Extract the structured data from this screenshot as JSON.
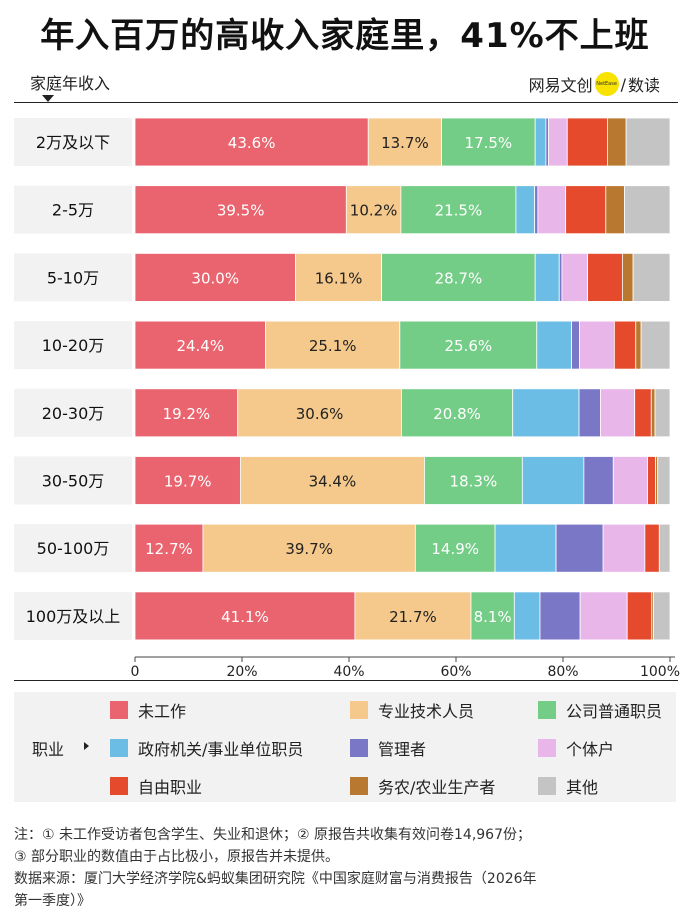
{
  "title": "年入百万的高收入家庭里，41%不上班",
  "axis_caption": "家庭年收入",
  "brand": {
    "name": "网易文创",
    "badge": "NetEase",
    "separator": "/",
    "suffix": "数读"
  },
  "legend_title": "职业",
  "chart_data": {
    "type": "bar",
    "orientation": "horizontal",
    "stacked": true,
    "categories": [
      "2万及以下",
      "2-5万",
      "5-10万",
      "10-20万",
      "20-30万",
      "30-50万",
      "50-100万",
      "100万及以上"
    ],
    "series": [
      {
        "name": "未工作",
        "color": "#e9646e",
        "values": [
          43.6,
          39.5,
          30.0,
          24.4,
          19.2,
          19.7,
          12.7,
          41.1
        ],
        "labels": [
          "43.6%",
          "39.5%",
          "30.0%",
          "24.4%",
          "19.2%",
          "19.7%",
          "12.7%",
          "41.1%"
        ]
      },
      {
        "name": "专业技术人员",
        "color": "#f5c98b",
        "values": [
          13.7,
          10.2,
          16.1,
          25.1,
          30.6,
          34.4,
          39.7,
          21.7
        ],
        "labels": [
          "13.7%",
          "10.2%",
          "16.1%",
          "25.1%",
          "30.6%",
          "34.4%",
          "39.7%",
          "21.7%"
        ]
      },
      {
        "name": "公司普通职员",
        "color": "#74cd87",
        "values": [
          17.5,
          21.5,
          28.7,
          25.6,
          20.8,
          18.3,
          14.9,
          8.1
        ],
        "labels": [
          "17.5%",
          "21.5%",
          "28.7%",
          "25.6%",
          "20.8%",
          "18.3%",
          "14.9%",
          "8.1%"
        ]
      },
      {
        "name": "政府机关/事业单位职员",
        "color": "#6bbde6",
        "values": [
          2.0,
          3.5,
          4.5,
          6.5,
          12.4,
          11.5,
          11.4,
          4.8
        ]
      },
      {
        "name": "管理者",
        "color": "#7b77c7",
        "values": [
          0.5,
          0.6,
          0.5,
          1.5,
          4.0,
          5.5,
          8.8,
          7.5
        ]
      },
      {
        "name": "个体户",
        "color": "#e9b6e9",
        "values": [
          3.5,
          5.2,
          4.8,
          6.5,
          6.4,
          6.4,
          7.8,
          8.8
        ]
      },
      {
        "name": "自由职业",
        "color": "#e44a2b",
        "values": [
          7.5,
          7.5,
          6.5,
          4.0,
          3.1,
          1.5,
          2.7,
          4.6
        ]
      },
      {
        "name": "务农/农业生产者",
        "color": "#b8782f",
        "values": [
          3.5,
          3.5,
          2.0,
          1.0,
          0.7,
          0.4,
          0.0,
          0.3
        ]
      },
      {
        "name": "其他",
        "color": "#c4c4c4",
        "values": [
          8.2,
          8.5,
          6.9,
          5.4,
          2.8,
          2.3,
          2.0,
          3.1
        ]
      }
    ],
    "xlim": [
      0,
      100
    ],
    "xticks": [
      "0",
      "20%",
      "40%",
      "60%",
      "80%",
      "100%"
    ],
    "grid": false
  },
  "notes": {
    "line1": "注：① 未工作受访者包含学生、失业和退休；② 原报告共收集有效问卷14,967份；",
    "line2": "③ 部分职业的数值由于占比极小，原报告并未提供。",
    "line3": "数据来源：厦门大学经济学院&蚂蚁集团研究院《中国家庭财富与消费报告（2026年",
    "line4": "第一季度）》"
  }
}
